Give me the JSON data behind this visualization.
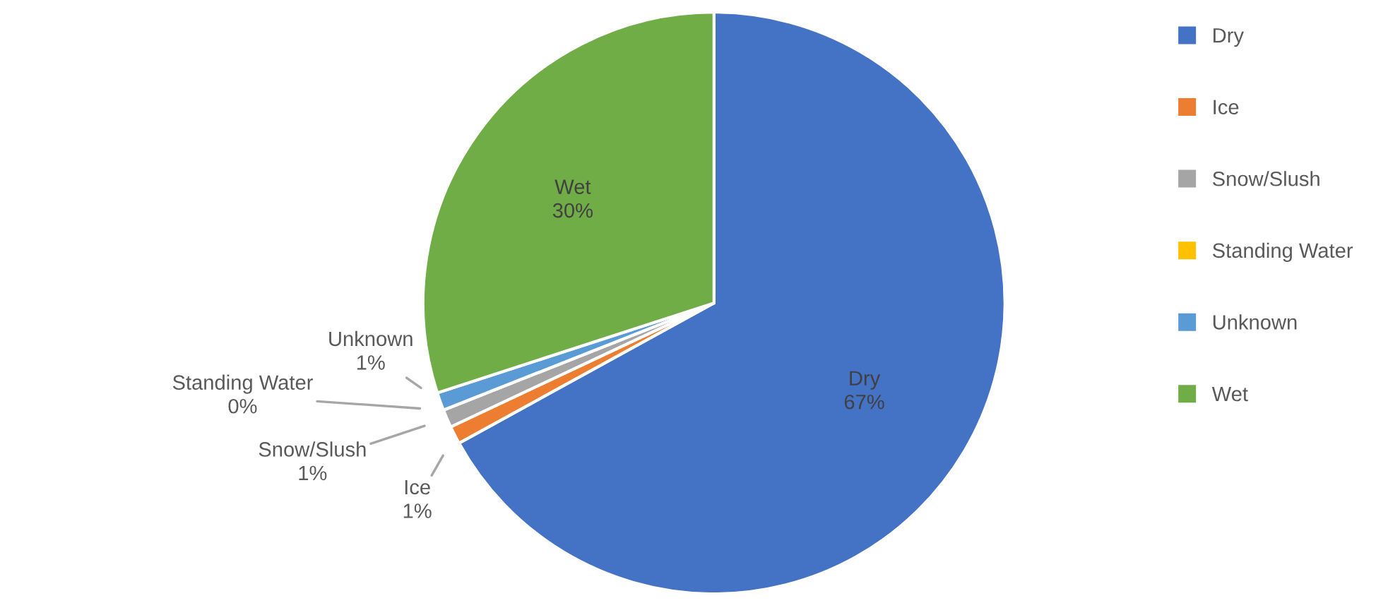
{
  "chart_data": {
    "type": "pie",
    "categories": [
      "Dry",
      "Ice",
      "Snow/Slush",
      "Standing Water",
      "Unknown",
      "Wet"
    ],
    "values": [
      67,
      1,
      1,
      0,
      1,
      30
    ],
    "value_labels": [
      "67%",
      "1%",
      "1%",
      "0%",
      "1%",
      "30%"
    ],
    "colors": [
      "#4472c4",
      "#ed7d31",
      "#a5a5a5",
      "#ffc000",
      "#5b9bd5",
      "#70ad47"
    ],
    "legend": "right"
  }
}
